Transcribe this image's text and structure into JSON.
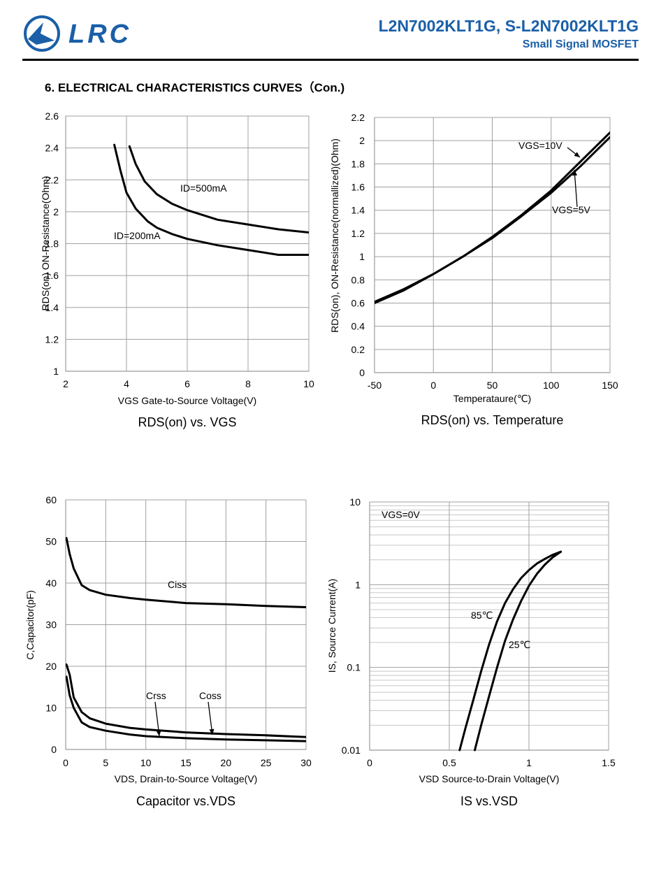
{
  "header": {
    "logo_text": "LRC",
    "part_number": "L2N7002KLT1G, S-L2N7002KLT1G",
    "subtitle": "Small Signal MOSFET",
    "section_title": "6. ELECTRICAL CHARACTERISTICS CURVES（Con.)"
  },
  "colors": {
    "brand": "#1a5fa8",
    "grid": "#a0a0a0",
    "curve": "#000000"
  },
  "chart_data": [
    {
      "type": "line",
      "caption": "RDS(on) vs. VGS",
      "xlabel": "VGS Gate-to-Source Voltage(V)",
      "ylabel": "RDS(on) ON-Resistance(Ohm)",
      "xlim": [
        2,
        10
      ],
      "ylim": [
        1,
        2.6
      ],
      "xticks": [
        2,
        4,
        6,
        8,
        10
      ],
      "yticks": [
        1,
        1.2,
        1.4,
        1.6,
        1.8,
        2,
        2.2,
        2.4,
        2.6
      ],
      "grid": true,
      "series": [
        {
          "name": "ID=500mA",
          "x": [
            4.1,
            4.3,
            4.6,
            5.0,
            5.5,
            6.0,
            7.0,
            8.0,
            9.0,
            10.0
          ],
          "y": [
            2.41,
            2.3,
            2.19,
            2.11,
            2.05,
            2.01,
            1.95,
            1.92,
            1.89,
            1.87
          ]
        },
        {
          "name": "ID=200mA",
          "x": [
            3.6,
            3.8,
            4.0,
            4.3,
            4.7,
            5.0,
            5.5,
            6.0,
            7.0,
            8.0,
            9.0,
            10.0
          ],
          "y": [
            2.42,
            2.26,
            2.12,
            2.02,
            1.94,
            1.9,
            1.86,
            1.83,
            1.79,
            1.76,
            1.73,
            1.73
          ]
        }
      ],
      "annotations": [
        {
          "text": "ID=500mA",
          "x": 6.8,
          "y": 2.12
        },
        {
          "text": "ID=200mA",
          "x": 3.7,
          "y": 1.85
        }
      ]
    },
    {
      "type": "line",
      "caption": "RDS(on) vs. Temperature",
      "xlabel": "Temperataure(℃)",
      "ylabel": "RDS(on), ON-Resistance(normallized)(Ohm)",
      "xlim": [
        -50,
        150
      ],
      "ylim": [
        0,
        2.2
      ],
      "xticks": [
        -50,
        0,
        50,
        100,
        150
      ],
      "yticks": [
        0,
        0.2,
        0.4,
        0.6,
        0.8,
        1,
        1.2,
        1.4,
        1.6,
        1.8,
        2,
        2.2
      ],
      "grid": true,
      "series": [
        {
          "name": "VGS=10V",
          "x": [
            -50,
            -25,
            0,
            25,
            50,
            75,
            100,
            125,
            150
          ],
          "y": [
            0.61,
            0.72,
            0.85,
            1.0,
            1.17,
            1.36,
            1.57,
            1.82,
            2.07
          ]
        },
        {
          "name": "VGS=5V",
          "x": [
            -50,
            -25,
            0,
            25,
            50,
            75,
            100,
            125,
            150
          ],
          "y": [
            0.6,
            0.71,
            0.85,
            1.0,
            1.16,
            1.35,
            1.55,
            1.78,
            2.03
          ]
        }
      ],
      "annotations": [
        {
          "text": "VGS=10V",
          "x": 122,
          "y": 1.96
        },
        {
          "text": "VGS=5V",
          "x": 116,
          "y": 1.39
        }
      ]
    },
    {
      "type": "line",
      "caption": "Capacitor vs.VDS",
      "xlabel": "VDS, Drain-to-Source Voltage(V)",
      "ylabel": "C,Capacitor(pF)",
      "xlim": [
        0,
        30
      ],
      "ylim": [
        0,
        60
      ],
      "xticks": [
        0,
        5,
        10,
        15,
        20,
        25,
        30
      ],
      "yticks": [
        0,
        10,
        20,
        30,
        40,
        50,
        60
      ],
      "grid": true,
      "series": [
        {
          "name": "Ciss",
          "x": [
            0.1,
            0.5,
            1.0,
            2.0,
            3.0,
            5.0,
            8.0,
            10.0,
            15.0,
            20.0,
            25.0,
            30.0
          ],
          "y": [
            50.8,
            47.0,
            43.5,
            39.5,
            38.3,
            37.2,
            36.4,
            36.0,
            35.2,
            34.9,
            34.5,
            34.2
          ]
        },
        {
          "name": "Coss",
          "x": [
            0.1,
            0.5,
            1.0,
            2.0,
            3.0,
            5.0,
            8.0,
            10.0,
            15.0,
            20.0,
            25.0,
            30.0
          ],
          "y": [
            20.4,
            18.0,
            12.5,
            9.0,
            7.5,
            6.2,
            5.2,
            4.8,
            4.1,
            3.7,
            3.4,
            3.0
          ]
        },
        {
          "name": "Crss",
          "x": [
            0.1,
            0.5,
            1.0,
            2.0,
            3.0,
            5.0,
            8.0,
            10.0,
            15.0,
            20.0,
            25.0,
            30.0
          ],
          "y": [
            17.5,
            13.0,
            10.0,
            6.5,
            5.4,
            4.5,
            3.6,
            3.2,
            2.7,
            2.4,
            2.2,
            2.0
          ]
        }
      ],
      "annotations": [
        {
          "text": "Ciss",
          "x": 14,
          "y": 39.2
        },
        {
          "text": "Crss",
          "x": 11.5,
          "y": 12.0
        },
        {
          "text": "Coss",
          "x": 18.5,
          "y": 12.0
        }
      ]
    },
    {
      "type": "line",
      "caption": "IS vs.VSD",
      "xlabel": "VSD Source-to-Drain Voltage(V)",
      "ylabel": "IS, Source Current(A)",
      "xlim": [
        0,
        1.5
      ],
      "ylim": [
        0.01,
        10
      ],
      "yscale": "log",
      "xticks": [
        0,
        0.5,
        1,
        1.5
      ],
      "yticks": [
        0.01,
        0.1,
        1,
        10
      ],
      "grid": true,
      "series": [
        {
          "name": "85℃",
          "x": [
            0.565,
            0.6,
            0.65,
            0.7,
            0.75,
            0.8,
            0.85,
            0.9,
            0.95,
            1.0,
            1.05,
            1.1,
            1.15,
            1.2
          ],
          "y": [
            0.01,
            0.018,
            0.04,
            0.09,
            0.19,
            0.36,
            0.6,
            0.88,
            1.2,
            1.5,
            1.8,
            2.05,
            2.3,
            2.5
          ]
        },
        {
          "name": "25℃",
          "x": [
            0.66,
            0.7,
            0.75,
            0.8,
            0.85,
            0.9,
            0.95,
            1.0,
            1.05,
            1.1,
            1.15,
            1.2
          ],
          "y": [
            0.01,
            0.02,
            0.045,
            0.1,
            0.21,
            0.38,
            0.63,
            0.97,
            1.35,
            1.75,
            2.15,
            2.5
          ]
        }
      ],
      "annotations": [
        {
          "text": "VGS=0V",
          "x": 0.08,
          "y": 8.0
        },
        {
          "text": "85℃",
          "x": 0.63,
          "y": 0.47
        },
        {
          "text": "25℃",
          "x": 0.87,
          "y": 0.22
        }
      ]
    }
  ]
}
